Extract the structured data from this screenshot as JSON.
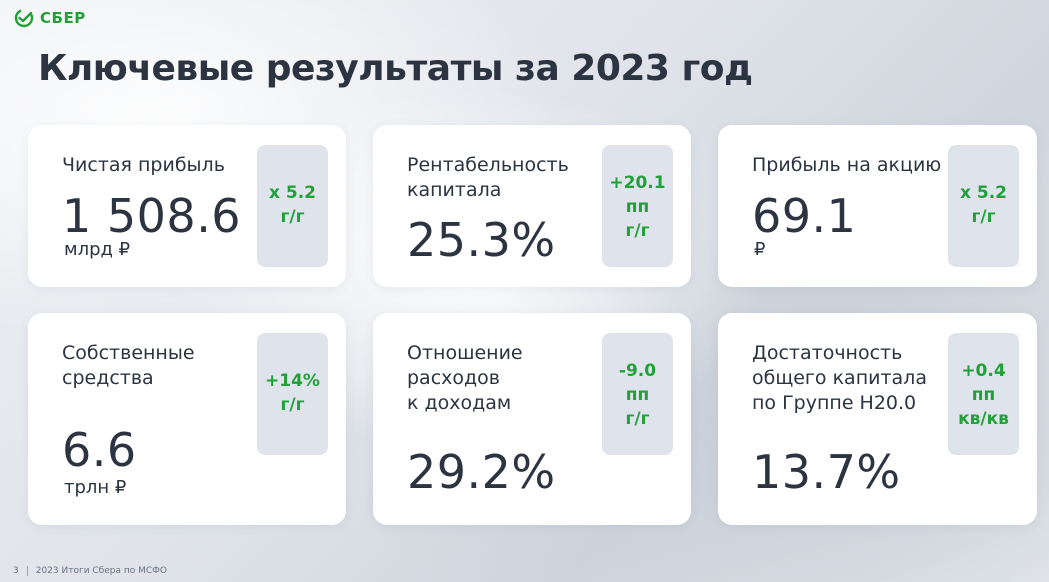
{
  "brand": {
    "logo_text": "СБЕР",
    "brand_color": "#21A038"
  },
  "page_title": "Ключевые результаты за 2023 год",
  "cards": [
    {
      "label": "Чистая прибыль",
      "value": "1 508.6",
      "unit": "млрд ₽",
      "badge": "x 5.2\nг/г"
    },
    {
      "label": "Рентабельность\nкапитала",
      "value": "25.3%",
      "unit": "",
      "badge": "+20.1\nпп\nг/г"
    },
    {
      "label": "Прибыль на акцию",
      "value": "69.1",
      "unit": "₽",
      "badge": "x 5.2\nг/г"
    },
    {
      "label": "Собственные\nсредства",
      "value": "6.6",
      "unit": "трлн ₽",
      "badge": "+14%\nг/г"
    },
    {
      "label": "Отношение\nрасходов\nк доходам",
      "value": "29.2%",
      "unit": "",
      "badge": "-9.0\nпп\nг/г"
    },
    {
      "label": "Достаточность\nобщего капитала\nпо Группе Н20.0",
      "value": "13.7%",
      "unit": "",
      "badge": "+0.4\nпп\nкв/кв"
    }
  ],
  "footer": {
    "page_number": "3",
    "text": "2023 Итоги Сбера по МСФО"
  },
  "colors": {
    "text_dark": "#2B3440",
    "badge_bg": "#DFE4EC",
    "card_bg": "#FFFFFF"
  }
}
